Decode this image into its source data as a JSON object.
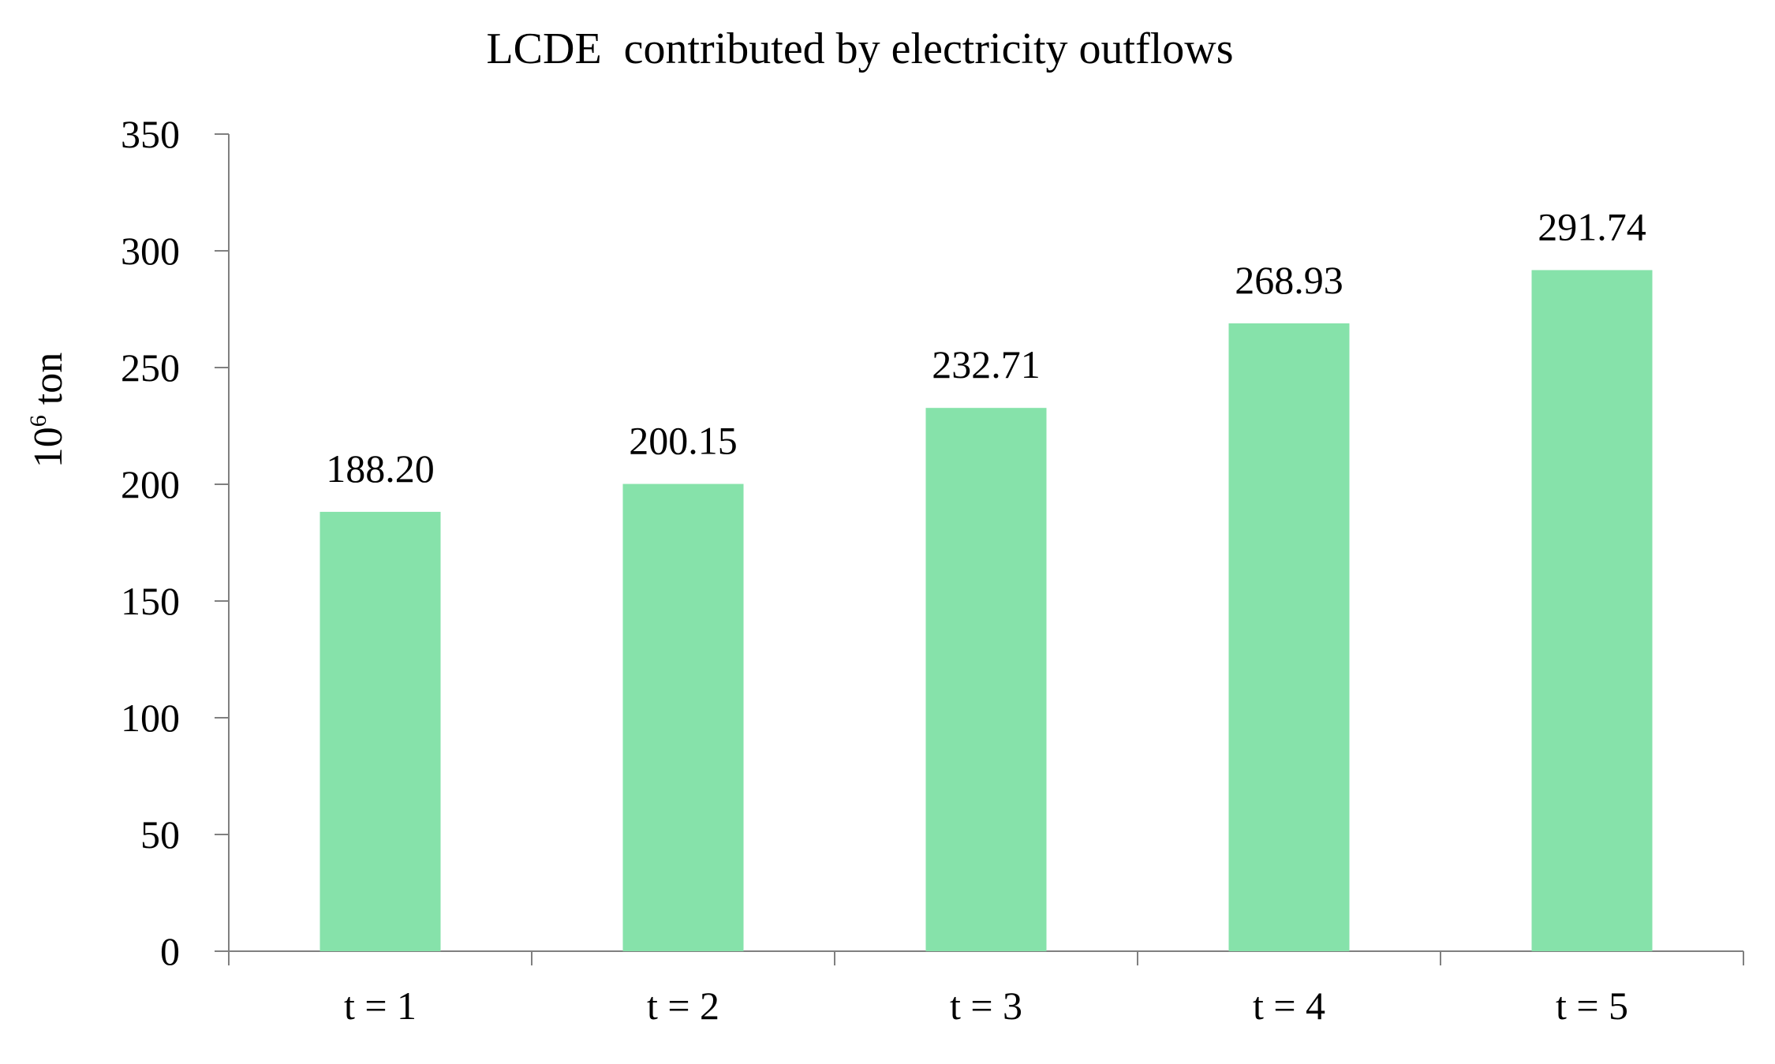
{
  "chart_data": {
    "type": "bar",
    "title": "LCDE  contributed by electricity outflows",
    "xlabel": "",
    "ylabel": {
      "base": "10",
      "superscript": "6",
      "unit": " ton"
    },
    "categories": [
      "t = 1",
      "t = 2",
      "t = 3",
      "t = 4",
      "t = 5"
    ],
    "values": [
      188.2,
      200.15,
      232.71,
      268.93,
      291.74
    ],
    "value_labels": [
      "188.20",
      "200.15",
      "232.71",
      "268.93",
      "291.74"
    ],
    "ylim": [
      0,
      350
    ],
    "yticks": [
      0,
      50,
      100,
      150,
      200,
      250,
      300,
      350
    ],
    "grid": false,
    "legend": "none",
    "bar_color": "#86E2AA",
    "axis_color": "#808080"
  }
}
